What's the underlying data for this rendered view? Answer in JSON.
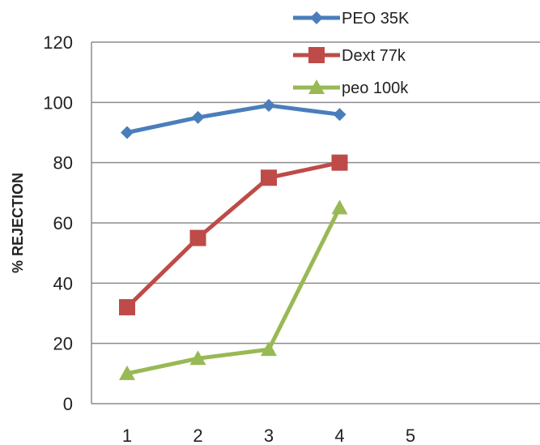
{
  "chart_data": {
    "type": "line",
    "title": "",
    "xlabel": "",
    "ylabel": "% REJECTION",
    "ylim": [
      0,
      120
    ],
    "yticks": [
      "0",
      "20",
      "40",
      "60",
      "80",
      "100",
      "120"
    ],
    "xticks": [
      "1",
      "2",
      "3",
      "4",
      "5"
    ],
    "grid": true,
    "legend_position": "top-right",
    "series": [
      {
        "name": "PEO 35K",
        "color": "#4a7ebb",
        "marker": "diamond",
        "x": [
          1,
          2,
          3,
          4
        ],
        "values": [
          90,
          95,
          99,
          96
        ]
      },
      {
        "name": "Dext 77k",
        "color": "#be4b48",
        "marker": "square",
        "x": [
          1,
          2,
          3,
          4
        ],
        "values": [
          32,
          55,
          75,
          80
        ]
      },
      {
        "name": "peo 100k",
        "color": "#98b954",
        "marker": "triangle",
        "x": [
          1,
          2,
          3,
          4
        ],
        "values": [
          10,
          15,
          18,
          65
        ]
      }
    ]
  }
}
